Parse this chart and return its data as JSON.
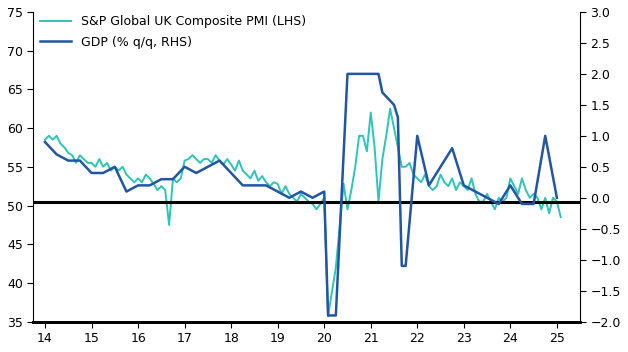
{
  "pmi_color": "#2EC4B6",
  "gdp_color": "#2255A4",
  "hline_lhs": 50.5,
  "lhs_ylim": [
    35,
    75
  ],
  "rhs_ylim": [
    -2.0,
    3.0
  ],
  "lhs_yticks": [
    35,
    40,
    45,
    50,
    55,
    60,
    65,
    70,
    75
  ],
  "rhs_yticks": [
    -2.0,
    -1.5,
    -1.0,
    -0.5,
    0.0,
    0.5,
    1.0,
    1.5,
    2.0,
    2.5,
    3.0
  ],
  "xlim": [
    13.75,
    25.5
  ],
  "xticks": [
    14,
    15,
    16,
    17,
    18,
    19,
    20,
    21,
    22,
    23,
    24,
    25
  ],
  "legend_pmi": "S&P Global UK Composite PMI (LHS)",
  "legend_gdp": "GDP (% q/q, RHS)",
  "pmi_x": [
    14.0,
    14.083,
    14.167,
    14.25,
    14.333,
    14.417,
    14.5,
    14.583,
    14.667,
    14.75,
    14.833,
    14.917,
    15.0,
    15.083,
    15.167,
    15.25,
    15.333,
    15.417,
    15.5,
    15.583,
    15.667,
    15.75,
    15.833,
    15.917,
    16.0,
    16.083,
    16.167,
    16.25,
    16.333,
    16.417,
    16.5,
    16.583,
    16.667,
    16.75,
    16.833,
    16.917,
    17.0,
    17.083,
    17.167,
    17.25,
    17.333,
    17.417,
    17.5,
    17.583,
    17.667,
    17.75,
    17.833,
    17.917,
    18.0,
    18.083,
    18.167,
    18.25,
    18.333,
    18.417,
    18.5,
    18.583,
    18.667,
    18.75,
    18.833,
    18.917,
    19.0,
    19.083,
    19.167,
    19.25,
    19.333,
    19.417,
    19.5,
    19.583,
    19.667,
    19.75,
    19.833,
    19.917,
    20.0,
    20.083,
    20.25,
    20.417,
    20.5,
    20.583,
    20.667,
    20.75,
    20.833,
    20.917,
    21.0,
    21.083,
    21.167,
    21.25,
    21.333,
    21.417,
    21.5,
    21.583,
    21.667,
    21.75,
    21.833,
    21.917,
    22.0,
    22.083,
    22.167,
    22.25,
    22.333,
    22.417,
    22.5,
    22.583,
    22.667,
    22.75,
    22.833,
    22.917,
    23.0,
    23.083,
    23.167,
    23.25,
    23.333,
    23.417,
    23.5,
    23.583,
    23.667,
    23.75,
    23.833,
    23.917,
    24.0,
    24.083,
    24.167,
    24.25,
    24.333,
    24.417,
    24.5,
    24.583,
    24.667,
    24.75,
    24.833,
    24.917,
    25.0,
    25.083
  ],
  "pmi_y": [
    58.5,
    59.0,
    58.5,
    59.0,
    58.0,
    57.5,
    56.8,
    56.5,
    55.5,
    56.5,
    56.0,
    55.5,
    55.5,
    55.0,
    56.0,
    55.0,
    55.5,
    54.5,
    55.0,
    54.5,
    55.0,
    54.0,
    53.5,
    53.0,
    53.5,
    53.0,
    54.0,
    53.5,
    52.8,
    52.0,
    52.5,
    52.0,
    47.5,
    53.5,
    53.0,
    53.5,
    55.8,
    56.0,
    56.5,
    56.0,
    55.5,
    56.0,
    56.0,
    55.5,
    56.5,
    55.8,
    55.3,
    56.0,
    55.3,
    54.5,
    55.8,
    54.5,
    54.0,
    53.5,
    54.5,
    53.2,
    53.8,
    53.0,
    52.5,
    53.0,
    52.8,
    51.5,
    52.5,
    51.5,
    51.0,
    50.5,
    51.5,
    51.0,
    50.5,
    50.2,
    49.5,
    50.2,
    51.0,
    35.7,
    42.0,
    52.8,
    49.5,
    52.0,
    55.0,
    59.0,
    59.0,
    57.0,
    62.0,
    57.5,
    50.5,
    56.0,
    59.0,
    62.5,
    60.0,
    57.5,
    55.0,
    55.0,
    55.5,
    54.0,
    53.5,
    53.0,
    54.0,
    52.5,
    52.0,
    52.5,
    54.0,
    53.0,
    52.5,
    53.5,
    52.0,
    53.0,
    52.5,
    52.0,
    53.5,
    51.5,
    50.5,
    50.5,
    51.5,
    50.5,
    49.5,
    51.0,
    50.5,
    51.0,
    53.5,
    52.5,
    51.5,
    53.5,
    52.0,
    51.0,
    51.5,
    51.0,
    49.5,
    51.0,
    49.0,
    51.0,
    50.5,
    48.5
  ],
  "gdp_x": [
    14.0,
    14.25,
    14.5,
    14.75,
    15.0,
    15.25,
    15.5,
    15.75,
    16.0,
    16.25,
    16.5,
    16.75,
    17.0,
    17.25,
    17.5,
    17.75,
    18.0,
    18.25,
    18.5,
    18.75,
    19.0,
    19.25,
    19.5,
    19.75,
    20.0,
    20.083,
    20.167,
    20.25,
    20.5,
    20.583,
    20.667,
    20.75,
    21.0,
    21.083,
    21.167,
    21.25,
    21.5,
    21.583,
    21.667,
    21.75,
    22.0,
    22.25,
    22.5,
    22.75,
    23.0,
    23.25,
    23.5,
    23.75,
    24.0,
    24.25,
    24.5,
    24.75,
    25.0
  ],
  "gdp_y": [
    0.9,
    0.7,
    0.6,
    0.6,
    0.4,
    0.4,
    0.5,
    0.1,
    0.2,
    0.2,
    0.3,
    0.3,
    0.5,
    0.4,
    0.5,
    0.6,
    0.4,
    0.2,
    0.2,
    0.2,
    0.1,
    0.0,
    0.1,
    0.0,
    0.1,
    -1.9,
    -1.9,
    -1.9,
    2.0,
    2.0,
    2.0,
    2.0,
    2.0,
    2.0,
    2.0,
    1.7,
    1.5,
    1.3,
    -1.1,
    -1.1,
    1.0,
    0.2,
    0.5,
    0.8,
    0.2,
    0.1,
    0.0,
    -0.1,
    0.2,
    -0.1,
    -0.1,
    1.0,
    0.0
  ]
}
